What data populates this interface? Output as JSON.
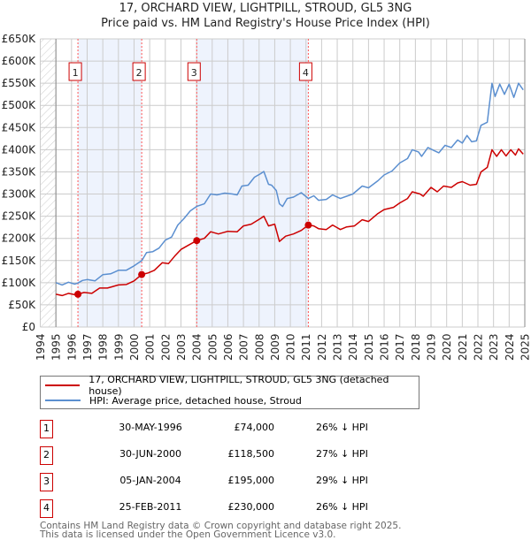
{
  "title_line1": "17, ORCHARD VIEW, LIGHTPILL, STROUD, GL5 3NG",
  "title_line2": "Price paid vs. HM Land Registry's House Price Index (HPI)",
  "legend": {
    "property": "17, ORCHARD VIEW, LIGHTPILL, STROUD, GL5 3NG (detached house)",
    "hpi": "HPI: Average price, detached house, Stroud"
  },
  "colors": {
    "property": "#cc0000",
    "hpi": "#5b8fd0",
    "shade": "#eef3fd"
  },
  "sales": [
    {
      "num": "1",
      "date": "30-MAY-1996",
      "price": "£74,000",
      "hpi": "26% ↓ HPI",
      "x": 1996.41,
      "y": 74
    },
    {
      "num": "2",
      "date": "30-JUN-2000",
      "price": "£118,500",
      "hpi": "27% ↓ HPI",
      "x": 2000.49,
      "y": 118.5
    },
    {
      "num": "3",
      "date": "05-JAN-2004",
      "price": "£195,000",
      "hpi": "29% ↓ HPI",
      "x": 2004.01,
      "y": 195
    },
    {
      "num": "4",
      "date": "25-FEB-2011",
      "price": "£230,000",
      "hpi": "26% ↓ HPI",
      "x": 2011.15,
      "y": 230
    }
  ],
  "footer": {
    "line1": "Contains HM Land Registry data © Crown copyright and database right 2025.",
    "line2": "This data is licensed under the Open Government Licence v3.0."
  },
  "chart_data": {
    "type": "line",
    "xlim": [
      1994,
      2025
    ],
    "ylim": [
      0,
      650
    ],
    "y_unit": "£K",
    "yticks": [
      "£0",
      "£50K",
      "£100K",
      "£150K",
      "£200K",
      "£250K",
      "£300K",
      "£350K",
      "£400K",
      "£450K",
      "£500K",
      "£550K",
      "£600K",
      "£650K"
    ],
    "xticks": [
      "1994",
      "1995",
      "1996",
      "1997",
      "1998",
      "1999",
      "2000",
      "2001",
      "2002",
      "2003",
      "2004",
      "2005",
      "2006",
      "2007",
      "2008",
      "2009",
      "2010",
      "2011",
      "2012",
      "2013",
      "2014",
      "2015",
      "2016",
      "2017",
      "2018",
      "2019",
      "2020",
      "2021",
      "2022",
      "2023",
      "2024",
      "2025"
    ],
    "grid": true,
    "series": [
      {
        "name": "hpi",
        "points": [
          [
            1995,
            100
          ],
          [
            1995.4,
            95
          ],
          [
            1995.8,
            101
          ],
          [
            1996.2,
            97
          ],
          [
            1996.4,
            99
          ],
          [
            1996.7,
            105
          ],
          [
            1997,
            107
          ],
          [
            1997.5,
            104
          ],
          [
            1998,
            118
          ],
          [
            1998.5,
            120
          ],
          [
            1999,
            128
          ],
          [
            1999.5,
            128
          ],
          [
            2000,
            138
          ],
          [
            2000.5,
            150
          ],
          [
            2000.8,
            168
          ],
          [
            2001.2,
            170
          ],
          [
            2001.6,
            178
          ],
          [
            2002,
            196
          ],
          [
            2002.4,
            203
          ],
          [
            2002.8,
            230
          ],
          [
            2003.2,
            245
          ],
          [
            2003.6,
            262
          ],
          [
            2004,
            272
          ],
          [
            2004.5,
            278
          ],
          [
            2004.9,
            300
          ],
          [
            2005.3,
            298
          ],
          [
            2005.8,
            302
          ],
          [
            2006.3,
            300
          ],
          [
            2006.6,
            298
          ],
          [
            2006.9,
            318
          ],
          [
            2007.3,
            320
          ],
          [
            2007.7,
            338
          ],
          [
            2008.1,
            346
          ],
          [
            2008.3,
            351
          ],
          [
            2008.6,
            322
          ],
          [
            2008.8,
            320
          ],
          [
            2009.1,
            308
          ],
          [
            2009.3,
            278
          ],
          [
            2009.5,
            272
          ],
          [
            2009.8,
            290
          ],
          [
            2010.2,
            293
          ],
          [
            2010.7,
            303
          ],
          [
            2011.15,
            290
          ],
          [
            2011.5,
            296
          ],
          [
            2011.8,
            286
          ],
          [
            2012.3,
            288
          ],
          [
            2012.7,
            298
          ],
          [
            2013.2,
            290
          ],
          [
            2013.6,
            295
          ],
          [
            2014,
            300
          ],
          [
            2014.6,
            318
          ],
          [
            2015,
            314
          ],
          [
            2015.6,
            330
          ],
          [
            2016,
            343
          ],
          [
            2016.5,
            352
          ],
          [
            2017,
            370
          ],
          [
            2017.5,
            380
          ],
          [
            2017.8,
            400
          ],
          [
            2018.2,
            395
          ],
          [
            2018.4,
            385
          ],
          [
            2018.8,
            405
          ],
          [
            2019.2,
            398
          ],
          [
            2019.5,
            393
          ],
          [
            2019.9,
            410
          ],
          [
            2020.3,
            405
          ],
          [
            2020.7,
            422
          ],
          [
            2021,
            415
          ],
          [
            2021.3,
            432
          ],
          [
            2021.6,
            418
          ],
          [
            2021.9,
            420
          ],
          [
            2022.2,
            455
          ],
          [
            2022.6,
            462
          ],
          [
            2022.9,
            550
          ],
          [
            2023.1,
            520
          ],
          [
            2023.4,
            548
          ],
          [
            2023.7,
            525
          ],
          [
            2024,
            548
          ],
          [
            2024.3,
            518
          ],
          [
            2024.6,
            550
          ],
          [
            2024.9,
            535
          ]
        ]
      },
      {
        "name": "property",
        "points": [
          [
            1995,
            74
          ],
          [
            1995.4,
            71
          ],
          [
            1995.8,
            76
          ],
          [
            1996.2,
            73
          ],
          [
            1996.41,
            74
          ],
          [
            1996.8,
            78
          ],
          [
            1997.3,
            76
          ],
          [
            1997.8,
            88
          ],
          [
            1998.3,
            88
          ],
          [
            1999,
            95
          ],
          [
            1999.5,
            96
          ],
          [
            2000,
            104
          ],
          [
            2000.49,
            118.5
          ],
          [
            2000.9,
            122
          ],
          [
            2001.3,
            128
          ],
          [
            2001.8,
            145
          ],
          [
            2002.2,
            143
          ],
          [
            2002.6,
            160
          ],
          [
            2003,
            175
          ],
          [
            2003.5,
            185
          ],
          [
            2004.01,
            195
          ],
          [
            2004.5,
            200
          ],
          [
            2004.9,
            215
          ],
          [
            2005.4,
            210
          ],
          [
            2006,
            216
          ],
          [
            2006.6,
            215
          ],
          [
            2007,
            228
          ],
          [
            2007.5,
            232
          ],
          [
            2008.1,
            245
          ],
          [
            2008.3,
            250
          ],
          [
            2008.6,
            228
          ],
          [
            2009,
            232
          ],
          [
            2009.3,
            193
          ],
          [
            2009.7,
            205
          ],
          [
            2010.2,
            210
          ],
          [
            2010.7,
            218
          ],
          [
            2011.15,
            230
          ],
          [
            2011.5,
            228
          ],
          [
            2011.8,
            222
          ],
          [
            2012.3,
            220
          ],
          [
            2012.7,
            230
          ],
          [
            2013.2,
            220
          ],
          [
            2013.6,
            226
          ],
          [
            2014.1,
            228
          ],
          [
            2014.6,
            242
          ],
          [
            2015,
            238
          ],
          [
            2015.6,
            256
          ],
          [
            2016,
            265
          ],
          [
            2016.6,
            270
          ],
          [
            2017,
            280
          ],
          [
            2017.5,
            290
          ],
          [
            2017.8,
            305
          ],
          [
            2018.3,
            300
          ],
          [
            2018.5,
            295
          ],
          [
            2019,
            315
          ],
          [
            2019.4,
            305
          ],
          [
            2019.8,
            318
          ],
          [
            2020.3,
            315
          ],
          [
            2020.7,
            325
          ],
          [
            2021,
            328
          ],
          [
            2021.5,
            320
          ],
          [
            2021.9,
            322
          ],
          [
            2022.2,
            350
          ],
          [
            2022.6,
            360
          ],
          [
            2022.9,
            400
          ],
          [
            2023.2,
            385
          ],
          [
            2023.5,
            400
          ],
          [
            2023.8,
            386
          ],
          [
            2024.1,
            400
          ],
          [
            2024.4,
            388
          ],
          [
            2024.6,
            402
          ],
          [
            2024.9,
            390
          ]
        ]
      }
    ]
  }
}
